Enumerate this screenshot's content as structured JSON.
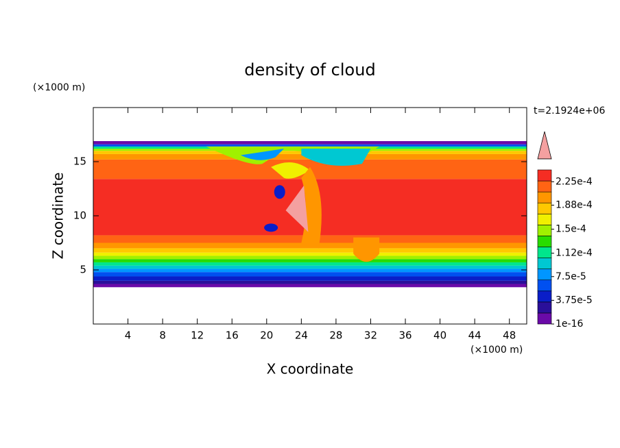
{
  "chart_data": {
    "type": "contour",
    "title": "density of cloud",
    "x_label": "X coordinate",
    "y_label": "Z coordinate",
    "x_unit": "(×1000 m)",
    "y_unit": "(×1000 m)",
    "annotation": "t=2.1924e+06",
    "xlim": [
      0,
      50
    ],
    "xticks": [
      4,
      8,
      12,
      16,
      20,
      24,
      28,
      32,
      36,
      40,
      44,
      48
    ],
    "ylim": [
      0,
      20
    ],
    "yticks": [
      5,
      10,
      15
    ],
    "colorbar": {
      "clim": [
        1e-16,
        0.00024375
      ],
      "extend_color": "#f4a0a0",
      "colors": [
        "#6a0aa8",
        "#2a0f9a",
        "#0a1ec8",
        "#0050f0",
        "#0096ff",
        "#00c8d2",
        "#00e68c",
        "#28dc00",
        "#a0f000",
        "#f0f000",
        "#ffc800",
        "#ff9600",
        "#ff6414",
        "#f52d23"
      ],
      "ticks": [
        1e-16,
        {
          "value": 3.75e-05,
          "label": "3.75e-5"
        },
        {
          "value": 7.5e-05,
          "label": "7.5e-5"
        },
        {
          "value": 0.000112,
          "label": "1.12e-4"
        },
        {
          "value": 0.00015,
          "label": "1.5e-4"
        },
        {
          "value": 0.000188,
          "label": "1.88e-4"
        },
        {
          "value": 0.000225,
          "label": "2.25e-4"
        }
      ]
    }
  }
}
